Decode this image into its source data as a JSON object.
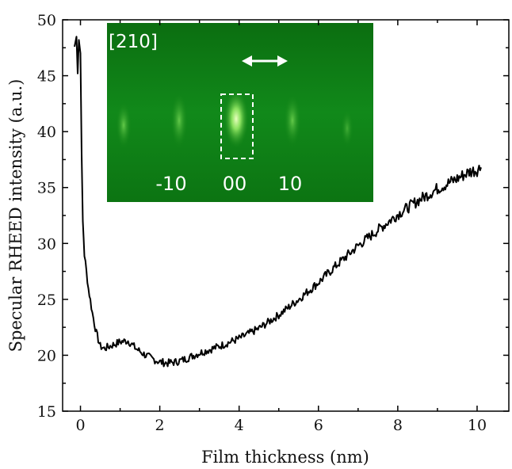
{
  "chart_data": {
    "type": "line",
    "title": "",
    "xlabel": "Film thickness (nm)",
    "ylabel": "Specular RHEED intensity (a.u.)",
    "xlim": [
      -0.45,
      10.8
    ],
    "ylim": [
      15,
      50
    ],
    "xticks": [
      0,
      2,
      4,
      6,
      8,
      10
    ],
    "yticks": [
      15,
      20,
      25,
      30,
      35,
      40,
      45,
      50
    ],
    "grid": false,
    "legend": "none",
    "series": [
      {
        "color": "#000000",
        "x": [
          -0.15,
          -0.1,
          -0.07,
          -0.04,
          0.0,
          0.03,
          0.06,
          0.1,
          0.15,
          0.2,
          0.3,
          0.4,
          0.5,
          0.6,
          0.8,
          1.0,
          1.2,
          1.4,
          1.6,
          1.8,
          2.0,
          2.2,
          2.4,
          2.6,
          2.8,
          3.0,
          3.5,
          4.0,
          4.5,
          5.0,
          5.5,
          6.0,
          6.5,
          7.0,
          7.5,
          8.0,
          8.5,
          9.0,
          9.5,
          9.8,
          10.0,
          10.1
        ],
        "y": [
          47.6,
          48.5,
          45.2,
          48.2,
          47.0,
          38.0,
          32.0,
          29.0,
          27.5,
          26.0,
          23.8,
          22.0,
          20.8,
          20.6,
          20.9,
          21.2,
          21.3,
          20.6,
          20.1,
          19.7,
          19.4,
          19.3,
          19.4,
          19.6,
          19.9,
          20.2,
          20.8,
          21.5,
          22.4,
          23.6,
          25.0,
          26.5,
          28.2,
          29.8,
          31.2,
          32.6,
          33.8,
          34.9,
          35.8,
          36.4,
          36.6,
          36.8
        ]
      }
    ],
    "inset": {
      "direction_label": "[210]",
      "streak_labels": [
        "-10",
        "00",
        "10"
      ],
      "background": "#0e7f12",
      "streak_color": "#b8ff8a"
    }
  }
}
